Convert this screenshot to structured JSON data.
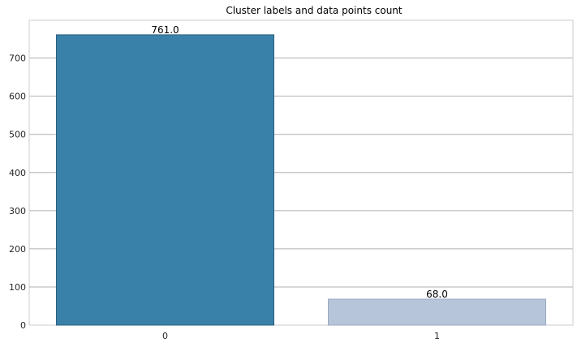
{
  "chart_data": {
    "type": "bar",
    "title": "Cluster labels and data points count",
    "xlabel": "",
    "ylabel": "",
    "categories": [
      "0",
      "1"
    ],
    "values": [
      761,
      68
    ],
    "data_labels": [
      "761.0",
      "68.0"
    ],
    "bar_colors": [
      "#3a81aa",
      "#b7c5db"
    ],
    "bar_edge_colors": [
      "#2c5f7f",
      "#9aa8c0"
    ],
    "ylim": [
      0,
      799.05
    ],
    "yticks": [
      0,
      100,
      200,
      300,
      400,
      500,
      600,
      700
    ],
    "ytick_labels": [
      "0",
      "100",
      "200",
      "300",
      "400",
      "500",
      "600",
      "700"
    ],
    "grid": "horizontal",
    "legend": "none"
  }
}
